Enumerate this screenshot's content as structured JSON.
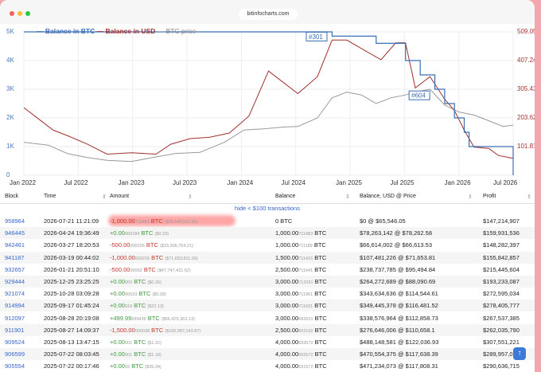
{
  "browser": {
    "url": "bitinfocharts.com"
  },
  "chart_data": {
    "type": "line",
    "title": "",
    "x_labels": [
      "Jan 2022",
      "Jul 2022",
      "Jan 2023",
      "Jul 2023",
      "Jan 2024",
      "Jul 2024",
      "Jan 2025",
      "Jul 2025",
      "Jan 2026",
      "Jul 2026"
    ],
    "y_left_ticks": [
      "0",
      "1K",
      "2K",
      "3K",
      "4K",
      "5K"
    ],
    "y_right_ticks": [
      "101.81",
      "203.62",
      "305.43",
      "407.24",
      "509.05"
    ],
    "y_left_range": [
      0,
      5000
    ],
    "y_right_range": [
      0,
      509.05
    ],
    "legend": [
      {
        "name": "Balance in BTC",
        "color": "#3b6fb6"
      },
      {
        "name": "Balance in USD",
        "color": "#a1302f"
      },
      {
        "name": "BTC price",
        "color": "#999999"
      }
    ],
    "annotations": [
      "#301",
      "#604"
    ],
    "series": [
      {
        "name": "Balance in BTC",
        "axis": "left",
        "points": [
          [
            0,
            5000
          ],
          [
            0.63,
            5000
          ],
          [
            0.63,
            4850
          ],
          [
            0.72,
            4850
          ],
          [
            0.72,
            4600
          ],
          [
            0.78,
            4600
          ],
          [
            0.78,
            4000
          ],
          [
            0.81,
            4000
          ],
          [
            0.81,
            3500
          ],
          [
            0.84,
            3500
          ],
          [
            0.84,
            3000
          ],
          [
            0.86,
            3000
          ],
          [
            0.86,
            2500
          ],
          [
            0.88,
            2500
          ],
          [
            0.88,
            2000
          ],
          [
            0.9,
            2000
          ],
          [
            0.9,
            1500
          ],
          [
            0.91,
            1500
          ],
          [
            0.91,
            1000
          ],
          [
            1,
            1000
          ],
          [
            1,
            0
          ]
        ]
      },
      {
        "name": "Balance in USD",
        "axis": "right",
        "points": [
          [
            0,
            240
          ],
          [
            0.03,
            200
          ],
          [
            0.06,
            160
          ],
          [
            0.09,
            140
          ],
          [
            0.13,
            110
          ],
          [
            0.17,
            75
          ],
          [
            0.22,
            80
          ],
          [
            0.27,
            75
          ],
          [
            0.3,
            110
          ],
          [
            0.34,
            130
          ],
          [
            0.38,
            135
          ],
          [
            0.42,
            150
          ],
          [
            0.46,
            210
          ],
          [
            0.5,
            370
          ],
          [
            0.53,
            330
          ],
          [
            0.56,
            290
          ],
          [
            0.6,
            350
          ],
          [
            0.63,
            480
          ],
          [
            0.66,
            480
          ],
          [
            0.69,
            450
          ],
          [
            0.73,
            410
          ],
          [
            0.76,
            470
          ],
          [
            0.78,
            470
          ],
          [
            0.8,
            310
          ],
          [
            0.83,
            350
          ],
          [
            0.86,
            270
          ],
          [
            0.88,
            230
          ],
          [
            0.9,
            160
          ],
          [
            0.92,
            100
          ],
          [
            0.95,
            95
          ],
          [
            0.97,
            70
          ],
          [
            1,
            60
          ]
        ]
      },
      {
        "name": "BTC price",
        "axis": "left",
        "points": [
          [
            0,
            1150
          ],
          [
            0.05,
            1050
          ],
          [
            0.09,
            750
          ],
          [
            0.13,
            620
          ],
          [
            0.17,
            520
          ],
          [
            0.22,
            480
          ],
          [
            0.27,
            640
          ],
          [
            0.31,
            760
          ],
          [
            0.36,
            800
          ],
          [
            0.41,
            1150
          ],
          [
            0.45,
            1580
          ],
          [
            0.49,
            1620
          ],
          [
            0.53,
            1680
          ],
          [
            0.56,
            1700
          ],
          [
            0.6,
            2000
          ],
          [
            0.63,
            2700
          ],
          [
            0.66,
            2900
          ],
          [
            0.69,
            2800
          ],
          [
            0.72,
            2500
          ],
          [
            0.75,
            2700
          ],
          [
            0.78,
            2800
          ],
          [
            0.8,
            2900
          ],
          [
            0.83,
            3000
          ],
          [
            0.86,
            2450
          ],
          [
            0.89,
            2200
          ],
          [
            0.92,
            2100
          ],
          [
            0.95,
            1900
          ],
          [
            0.98,
            1700
          ],
          [
            1,
            1750
          ]
        ]
      }
    ]
  },
  "table": {
    "headers": [
      "Block",
      "Time",
      "Amount",
      "Balance",
      "Balance, USD @ Price",
      "Profit"
    ],
    "hide_link": "hide < $100 transactions",
    "rows": [
      {
        "block": "958964",
        "time": "2026-07-21 11:21:09",
        "amount_main": "-1,000.00",
        "amount_small": "711483",
        "amount_unit": "BTC",
        "amount_usd": "($65,546,512.66)",
        "dir": "neg",
        "balance_main": "0 BTC",
        "balance_small": "",
        "usd": "$0 @ $65,546.05",
        "profit": "$147,214,907"
      },
      {
        "block": "946445",
        "time": "2026-04-24 19:36:49",
        "amount_main": "+0.00",
        "amount_small": "000284",
        "amount_unit": "BTC",
        "amount_usd": "($0.23)",
        "dir": "pos",
        "balance_main": "1,000.00",
        "balance_small": "711483",
        "balance_unit": "BTC",
        "usd": "$78,263,142 @ $78,262.58",
        "profit": "$159,931,536"
      },
      {
        "block": "942461",
        "time": "2026-03-27 18:20:53",
        "amount_main": "-500.00",
        "amount_small": "000226",
        "amount_unit": "BTC",
        "amount_usd": "($33,306,764.21)",
        "dir": "neg",
        "balance_main": "1,000.00",
        "balance_small": "711189",
        "balance_unit": "BTC",
        "usd": "$66,614,002 @ $66,613.53",
        "profit": "$148,282,397"
      },
      {
        "block": "941187",
        "time": "2026-03-19 00:44:02",
        "amount_main": "-1,000.00",
        "amount_small": "000226",
        "amount_unit": "BTC",
        "amount_usd": "($71,653,811.09)",
        "dir": "neg",
        "balance_main": "1,500.00",
        "balance_small": "711415",
        "balance_unit": "BTC",
        "usd": "$107,481,226 @ $71,653.81",
        "profit": "$155,842,857"
      },
      {
        "block": "932657",
        "time": "2026-01-21 20:51:10",
        "amount_main": "-500.00",
        "amount_small": "00062",
        "amount_unit": "BTC",
        "amount_usd": "($47,747,421.62)",
        "dir": "neg",
        "balance_main": "2,500.00",
        "balance_small": "711641",
        "balance_unit": "BTC",
        "usd": "$238,737,785 @ $95,494.84",
        "profit": "$215,445,604"
      },
      {
        "block": "929444",
        "time": "2025-12-25 23:25:25",
        "amount_main": "+0.00",
        "amount_small": "003",
        "amount_unit": "BTC",
        "amount_usd": "($0.26)",
        "dir": "pos",
        "balance_main": "3,000.00",
        "balance_small": "712261",
        "balance_unit": "BTC",
        "usd": "$264,272,689 @ $88,090.69",
        "profit": "$193,233,087"
      },
      {
        "block": "921074",
        "time": "2025-10-28 03:09:28",
        "amount_main": "+0.00",
        "amount_small": "00033",
        "amount_unit": "BTC",
        "amount_usd": "($0.38)",
        "dir": "pos",
        "balance_main": "3,000.00",
        "balance_small": "711961",
        "balance_unit": "BTC",
        "usd": "$343,634,636 @ $114,544.61",
        "profit": "$272,595,034"
      },
      {
        "block": "914994",
        "time": "2025-09-17 01:45:24",
        "amount_main": "+0.00",
        "amount_small": "019",
        "amount_unit": "BTC",
        "amount_usd": "($22.13)",
        "dir": "pos",
        "balance_main": "3,000.00",
        "balance_small": "711631",
        "balance_unit": "BTC",
        "usd": "$349,445,378 @ $116,481.52",
        "profit": "$278,405,777"
      },
      {
        "block": "912097",
        "time": "2025-08-28 20:19:08",
        "amount_main": "+499.99",
        "amount_small": "699439",
        "amount_unit": "BTC",
        "amount_usd": "($56,429,363.13)",
        "dir": "pos",
        "balance_main": "3,000.00",
        "balance_small": "692631",
        "balance_unit": "BTC",
        "usd": "$338,576,964 @ $112,858.73",
        "profit": "$267,537,385"
      },
      {
        "block": "911901",
        "time": "2025-08-27 14:09:37",
        "amount_main": "-1,500.00",
        "amount_small": "000038",
        "amount_unit": "BTC",
        "amount_usd": "($165,987,143.87)",
        "dir": "neg",
        "balance_main": "2,500.00",
        "balance_small": "693192",
        "balance_unit": "BTC",
        "usd": "$276,646,006 @ $110,658.1",
        "profit": "$262,035,790"
      },
      {
        "block": "909524",
        "time": "2025-08-13 13:47:15",
        "amount_main": "+0.00",
        "amount_small": "001",
        "amount_unit": "BTC",
        "amount_usd": "($1.22)",
        "dir": "pos",
        "balance_main": "4,000.00",
        "balance_small": "693572",
        "balance_unit": "BTC",
        "usd": "$488,148,581 @ $122,036.93",
        "profit": "$307,551,221"
      },
      {
        "block": "906599",
        "time": "2025-07-22 08:03:45",
        "amount_main": "+0.00",
        "amount_small": "001",
        "amount_unit": "BTC",
        "amount_usd": "($1.18)",
        "dir": "pos",
        "balance_main": "4,000.00",
        "balance_small": "692572",
        "balance_unit": "BTC",
        "usd": "$470,554,375 @ $117,638.39",
        "profit": "$289,957,016"
      },
      {
        "block": "905554",
        "time": "2025-07-22 00:17:46",
        "amount_main": "+0.00",
        "amount_small": "03",
        "amount_unit": "BTC",
        "amount_usd": "($35.34)",
        "dir": "pos",
        "balance_main": "4,000.00",
        "balance_small": "691572",
        "balance_unit": "BTC",
        "usd": "$471,234,073 @ $117,808.31",
        "profit": "$290,636,715"
      }
    ]
  },
  "colors": {
    "btc": "#3b6fb6",
    "usd": "#a1302f",
    "price": "#999999",
    "accent": "#3467c7",
    "positive": "#3c9a3c",
    "negative": "#c0392b"
  },
  "icons": {
    "sort": "sort-arrows-icon",
    "scroll": "arrow-up-icon"
  }
}
